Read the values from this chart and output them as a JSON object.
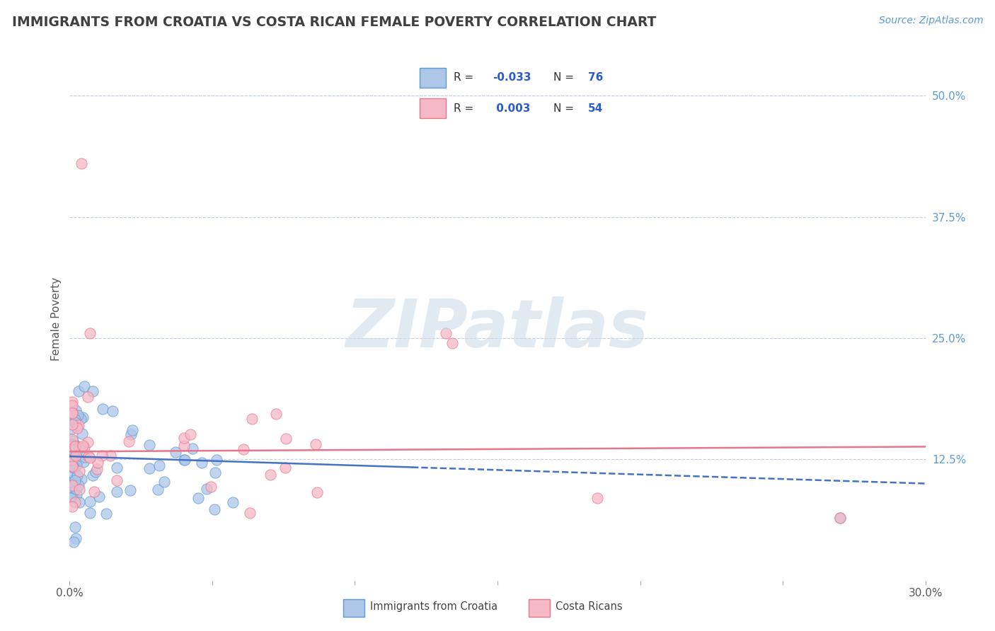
{
  "title": "IMMIGRANTS FROM CROATIA VS COSTA RICAN FEMALE POVERTY CORRELATION CHART",
  "source": "Source: ZipAtlas.com",
  "ylabel": "Female Poverty",
  "xlim": [
    0.0,
    0.3
  ],
  "ylim": [
    0.0,
    0.54
  ],
  "ytick_vals": [
    0.125,
    0.25,
    0.375,
    0.5
  ],
  "ytick_labels": [
    "12.5%",
    "25.0%",
    "37.5%",
    "50.0%"
  ],
  "series1_label": "Immigrants from Croatia",
  "series1_R": "-0.033",
  "series1_N": "76",
  "series1_color": "#aec6e8",
  "series1_edge_color": "#5b9bd5",
  "series2_label": "Costa Ricans",
  "series2_R": "0.003",
  "series2_N": "54",
  "series2_color": "#f4b8c8",
  "series2_edge_color": "#e8768a",
  "trend1_color": "#4472c4",
  "trend2_color": "#e8768a",
  "background_color": "#ffffff",
  "grid_color": "#c0d0e0",
  "title_color": "#404040",
  "source_color": "#5b9bd5",
  "legend_color": "#2b5cc8",
  "watermark": "ZIPatlas",
  "watermark_color": "#d0dce8"
}
